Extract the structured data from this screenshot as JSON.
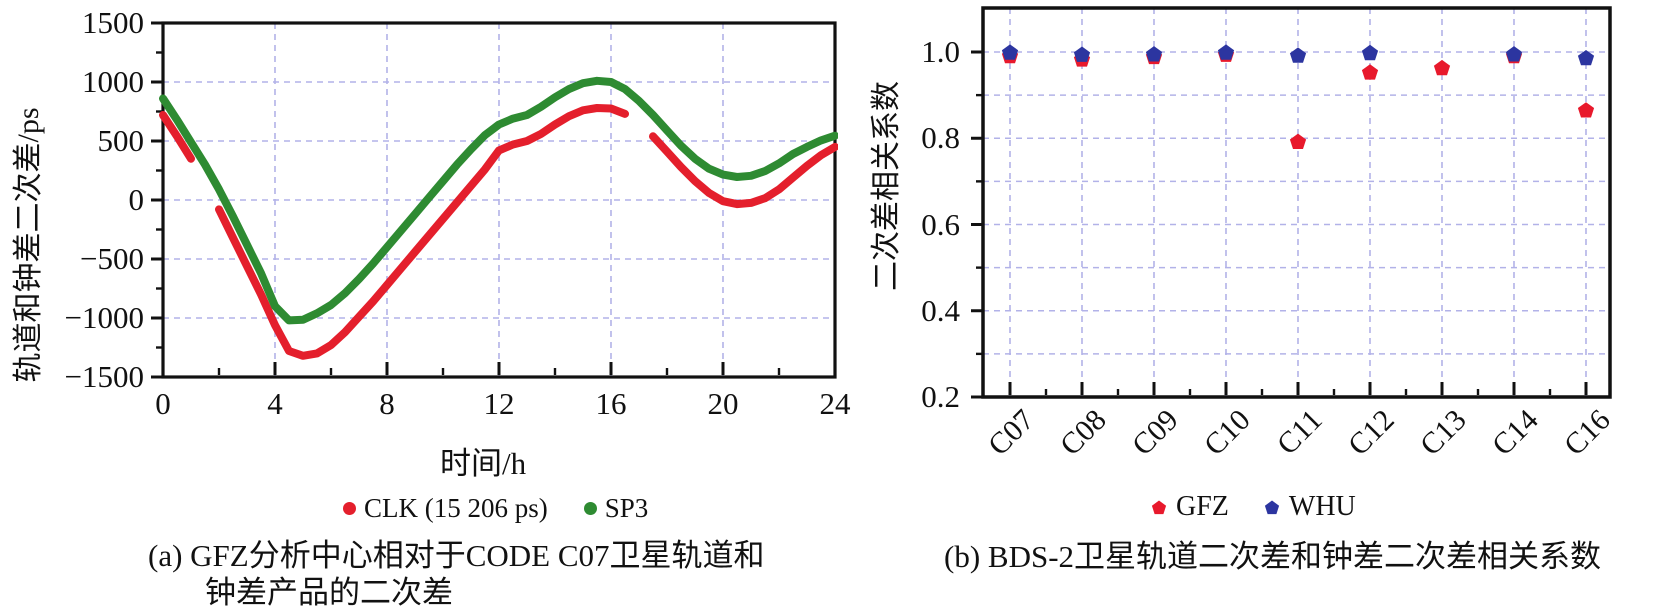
{
  "page": {
    "background": "#ffffff",
    "axis_color": "#111111",
    "grid_color": "#b2b2e8"
  },
  "figure": {
    "caption_a_line1": "(a) GFZ分析中心相对于CODE C07卫星轨道和",
    "caption_a_line2": "钟差产品的二次差",
    "caption_b": "(b) BDS-2卫星轨道二次差和钟差二次差相关系数"
  },
  "chart_data": [
    {
      "id": "orbit-clock-second-difference",
      "type": "line",
      "title": "",
      "xlabel": "时间/h",
      "ylabel": "轨道和钟差二次差/ps",
      "xlim": [
        0,
        24
      ],
      "ylim": [
        -1500,
        1500
      ],
      "grid": "dashed",
      "legend_position": "bottom",
      "x_start": 0,
      "x_step": 0.5,
      "x_ticks": [
        {
          "v": 0,
          "label": "0"
        },
        {
          "v": 4,
          "label": "4"
        },
        {
          "v": 8,
          "label": "8"
        },
        {
          "v": 12,
          "label": "12"
        },
        {
          "v": 16,
          "label": "16"
        },
        {
          "v": 20,
          "label": "20"
        },
        {
          "v": 24,
          "label": "24"
        }
      ],
      "y_ticks": [
        {
          "v": 1500,
          "label": "1500"
        },
        {
          "v": 1000,
          "label": "1000"
        },
        {
          "v": 500,
          "label": "500"
        },
        {
          "v": 0,
          "label": "0"
        },
        {
          "v": -500,
          "label": "−500"
        },
        {
          "v": -1000,
          "label": "−1000"
        },
        {
          "v": -1500,
          "label": "−1500"
        }
      ],
      "y_minor_ticks": [
        1250,
        750,
        250,
        -250,
        -750,
        -1250
      ],
      "x_minor_ticks": [
        2,
        6,
        10,
        14,
        18,
        22
      ],
      "series": [
        {
          "name": "CLK (15 206 ps)",
          "color": "#e41f2c",
          "marker": "dot",
          "values": [
            720,
            540,
            350,
            null,
            -80,
            -320,
            -560,
            -800,
            -1060,
            -1280,
            -1320,
            -1300,
            -1230,
            -1120,
            -990,
            -860,
            -720,
            -580,
            -440,
            -300,
            -160,
            -20,
            120,
            260,
            420,
            470,
            500,
            560,
            640,
            710,
            760,
            780,
            775,
            730,
            null,
            540,
            410,
            280,
            160,
            60,
            -10,
            -35,
            -25,
            15,
            90,
            190,
            290,
            380,
            450
          ]
        },
        {
          "name": "SP3",
          "color": "#2e8b32",
          "marker": "dot",
          "values": [
            860,
            680,
            490,
            300,
            90,
            -140,
            -380,
            -620,
            -900,
            -1020,
            -1015,
            -960,
            -890,
            -790,
            -670,
            -540,
            -400,
            -260,
            -120,
            20,
            160,
            300,
            430,
            550,
            640,
            690,
            720,
            790,
            870,
            940,
            990,
            1010,
            1000,
            940,
            840,
            720,
            590,
            460,
            350,
            265,
            215,
            195,
            205,
            245,
            310,
            390,
            450,
            505,
            545
          ]
        }
      ]
    },
    {
      "id": "second-difference-correlation",
      "type": "scatter",
      "title": "",
      "xlabel": "",
      "ylabel": "二次差相关系数",
      "ylim": [
        0.2,
        1.1
      ],
      "grid": "dashed",
      "legend_position": "bottom",
      "categories": [
        "C07",
        "C08",
        "C09",
        "C10",
        "C11",
        "C12",
        "C13",
        "C14",
        "C16"
      ],
      "y_ticks": [
        {
          "v": 1.0,
          "label": "1.0"
        },
        {
          "v": 0.8,
          "label": "0.8"
        },
        {
          "v": 0.6,
          "label": "0.6"
        },
        {
          "v": 0.4,
          "label": "0.4"
        },
        {
          "v": 0.2,
          "label": "0.2"
        }
      ],
      "y_minor_ticks": [
        0.9,
        0.7,
        0.5,
        0.3
      ],
      "grid_y_values": [
        1.0,
        0.9,
        0.8,
        0.7,
        0.6,
        0.5,
        0.4,
        0.3
      ],
      "series": [
        {
          "name": "GFZ",
          "color": "#e8192c",
          "marker": "pentagon",
          "values": [
            0.99,
            0.982,
            0.988,
            0.993,
            0.791,
            0.952,
            0.962,
            0.99,
            0.864
          ]
        },
        {
          "name": "WHU",
          "color": "#2c35a0",
          "marker": "pentagon",
          "values": [
            0.998,
            0.993,
            0.994,
            0.998,
            0.991,
            0.997,
            null,
            0.994,
            0.985
          ]
        }
      ]
    }
  ]
}
